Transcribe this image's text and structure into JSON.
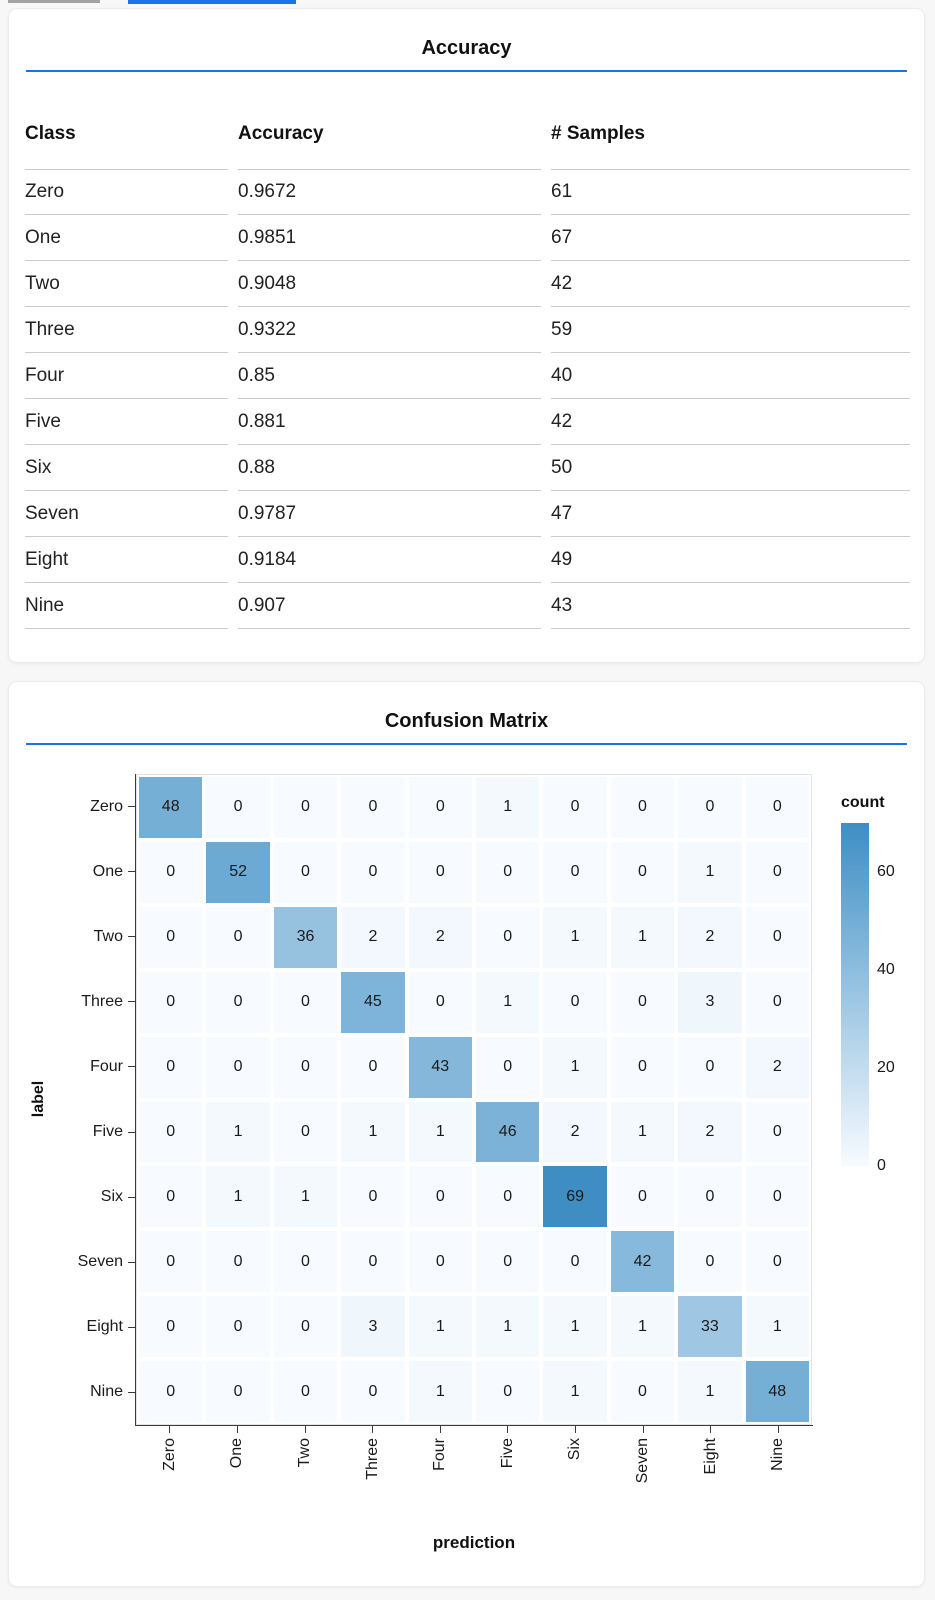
{
  "theme": {
    "accent_blue": "#1a73e8",
    "inactive_tab_gray": "#a3a3a3",
    "separator_gray": "#cbcbcb"
  },
  "cards": [
    {
      "title": "Accuracy"
    },
    {
      "title": "Confusion Matrix"
    }
  ],
  "chart_data": [
    {
      "type": "table",
      "title": "Accuracy",
      "columns": [
        "Class",
        "Accuracy",
        "# Samples"
      ],
      "rows": [
        [
          "Zero",
          "0.9672",
          "61"
        ],
        [
          "One",
          "0.9851",
          "67"
        ],
        [
          "Two",
          "0.9048",
          "42"
        ],
        [
          "Three",
          "0.9322",
          "59"
        ],
        [
          "Four",
          "0.85",
          "40"
        ],
        [
          "Five",
          "0.881",
          "42"
        ],
        [
          "Six",
          "0.88",
          "50"
        ],
        [
          "Seven",
          "0.9787",
          "47"
        ],
        [
          "Eight",
          "0.9184",
          "49"
        ],
        [
          "Nine",
          "0.907",
          "43"
        ]
      ]
    },
    {
      "type": "heatmap",
      "title": "Confusion Matrix",
      "xlabel": "prediction",
      "ylabel": "label",
      "x_categories": [
        "Zero",
        "One",
        "Two",
        "Three",
        "Four",
        "Five",
        "Six",
        "Seven",
        "Eight",
        "Nine"
      ],
      "y_categories": [
        "Zero",
        "One",
        "Two",
        "Three",
        "Four",
        "Five",
        "Six",
        "Seven",
        "Eight",
        "Nine"
      ],
      "matrix": [
        [
          48,
          0,
          0,
          0,
          0,
          1,
          0,
          0,
          0,
          0
        ],
        [
          0,
          52,
          0,
          0,
          0,
          0,
          0,
          0,
          1,
          0
        ],
        [
          0,
          0,
          36,
          2,
          2,
          0,
          1,
          1,
          2,
          0
        ],
        [
          0,
          0,
          0,
          45,
          0,
          1,
          0,
          0,
          3,
          0
        ],
        [
          0,
          0,
          0,
          0,
          43,
          0,
          1,
          0,
          0,
          2
        ],
        [
          0,
          1,
          0,
          1,
          1,
          46,
          2,
          1,
          2,
          0
        ],
        [
          0,
          1,
          1,
          0,
          0,
          0,
          69,
          0,
          0,
          0
        ],
        [
          0,
          0,
          0,
          0,
          0,
          0,
          0,
          42,
          0,
          0
        ],
        [
          0,
          0,
          0,
          3,
          1,
          1,
          1,
          1,
          33,
          1
        ],
        [
          0,
          0,
          0,
          0,
          1,
          0,
          1,
          0,
          1,
          48
        ]
      ],
      "legend": {
        "title": "count",
        "ticks": [
          60,
          40,
          20,
          0
        ],
        "domain": [
          0,
          70
        ],
        "position": "right"
      },
      "color_scale": {
        "min_color": "#f7fbff",
        "max_color": "#3e8ec4",
        "max_value": 69
      },
      "grid": false
    }
  ]
}
